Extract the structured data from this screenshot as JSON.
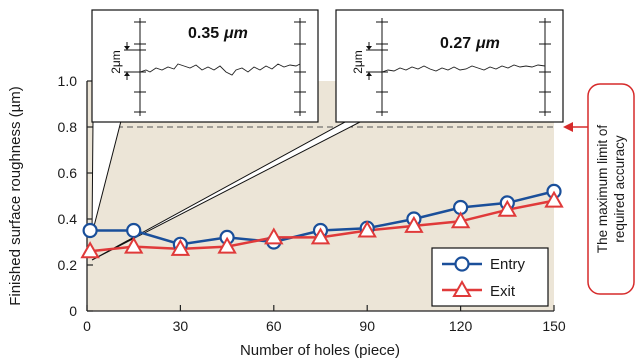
{
  "chart_data": {
    "type": "line",
    "title": "",
    "xlabel": "Number of holes (piece)",
    "ylabel": "Finished surface roughness (µm)",
    "xlim": [
      0,
      150
    ],
    "ylim": [
      0,
      1.0
    ],
    "x_ticks": [
      "0",
      "30",
      "60",
      "90",
      "120",
      "150"
    ],
    "y_ticks": [
      "0",
      "0.2",
      "0.4",
      "0.6",
      "0.8",
      "1.0"
    ],
    "x": [
      1,
      15,
      30,
      45,
      60,
      75,
      90,
      105,
      120,
      135,
      150
    ],
    "series": [
      {
        "name": "Entry",
        "marker": "circle",
        "color": "#1a4f9a",
        "values": [
          0.35,
          0.35,
          0.29,
          0.32,
          0.3,
          0.35,
          0.36,
          0.4,
          0.45,
          0.47,
          0.52
        ]
      },
      {
        "name": "Exit",
        "marker": "triangle",
        "color": "#e03a3a",
        "values": [
          0.26,
          0.28,
          0.27,
          0.28,
          0.32,
          0.32,
          0.35,
          0.37,
          0.39,
          0.44,
          0.48
        ]
      }
    ],
    "reference_line": {
      "y": 0.8,
      "label_lines": [
        "The maximum limit of",
        "required accuracy"
      ]
    },
    "insets": [
      {
        "value_label": "0.35",
        "unit": "μm",
        "scale_label": "2μm"
      },
      {
        "value_label": "0.27",
        "unit": "μm",
        "scale_label": "2μm"
      }
    ],
    "legend_position": "bottom-right",
    "grid": false,
    "plot_background": "#ece5d7"
  }
}
